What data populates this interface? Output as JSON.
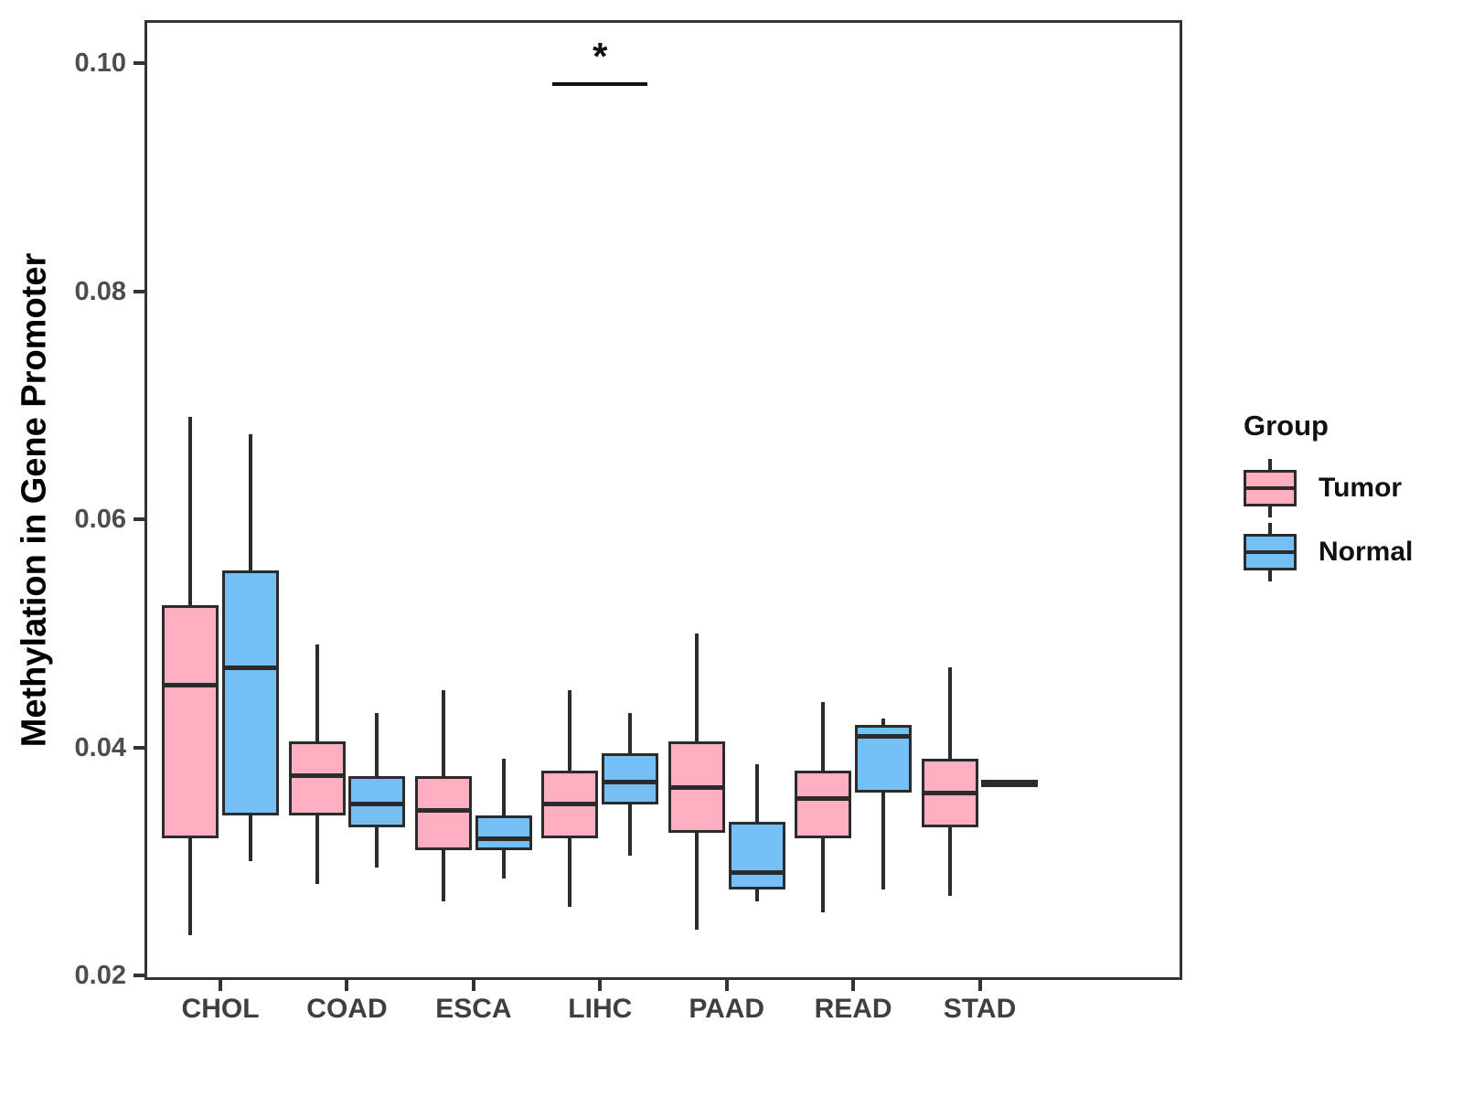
{
  "chart_data": {
    "type": "boxplot",
    "title": "",
    "xlabel": "",
    "ylabel": "Methylation in Gene Promoter",
    "categories": [
      "CHOL",
      "COAD",
      "ESCA",
      "LIHC",
      "PAAD",
      "READ",
      "STAD"
    ],
    "ytick_values": [
      0.02,
      0.04,
      0.06,
      0.08,
      0.1
    ],
    "ytick_labels": [
      "0.02",
      "0.04",
      "0.06",
      "0.08",
      "0.10"
    ],
    "ylim": [
      0.0196,
      0.1038
    ],
    "grid": "off",
    "legend_position": "right",
    "legend": {
      "title": "Group"
    },
    "colors": {
      "box_border": "#2B2B2B",
      "panel_border": "#333333",
      "axis_text": "#4D4D4D",
      "annotation": "#111111"
    },
    "series": [
      {
        "name": "Tumor",
        "color": "#FBAFC0",
        "boxes": [
          {
            "category": "CHOL",
            "low": 0.0235,
            "q1": 0.032,
            "median": 0.0455,
            "q3": 0.0525,
            "high": 0.069
          },
          {
            "category": "COAD",
            "low": 0.028,
            "q1": 0.034,
            "median": 0.0375,
            "q3": 0.0405,
            "high": 0.049
          },
          {
            "category": "ESCA",
            "low": 0.0265,
            "q1": 0.031,
            "median": 0.0345,
            "q3": 0.0375,
            "high": 0.045
          },
          {
            "category": "LIHC",
            "low": 0.026,
            "q1": 0.032,
            "median": 0.035,
            "q3": 0.038,
            "high": 0.045
          },
          {
            "category": "PAAD",
            "low": 0.024,
            "q1": 0.0325,
            "median": 0.0365,
            "q3": 0.0405,
            "high": 0.05
          },
          {
            "category": "READ",
            "low": 0.0255,
            "q1": 0.032,
            "median": 0.0355,
            "q3": 0.038,
            "high": 0.044
          },
          {
            "category": "STAD",
            "low": 0.027,
            "q1": 0.033,
            "median": 0.036,
            "q3": 0.039,
            "high": 0.047
          }
        ]
      },
      {
        "name": "Normal",
        "color": "#74BFF5",
        "boxes": [
          {
            "category": "CHOL",
            "low": 0.03,
            "q1": 0.034,
            "median": 0.047,
            "q3": 0.0555,
            "high": 0.0675
          },
          {
            "category": "COAD",
            "low": 0.0295,
            "q1": 0.033,
            "median": 0.035,
            "q3": 0.0375,
            "high": 0.043
          },
          {
            "category": "ESCA",
            "low": 0.0285,
            "q1": 0.031,
            "median": 0.032,
            "q3": 0.034,
            "high": 0.039
          },
          {
            "category": "LIHC",
            "low": 0.0305,
            "q1": 0.035,
            "median": 0.037,
            "q3": 0.0395,
            "high": 0.043
          },
          {
            "category": "PAAD",
            "low": 0.0265,
            "q1": 0.0275,
            "median": 0.029,
            "q3": 0.0335,
            "high": 0.0385
          },
          {
            "category": "READ",
            "low": 0.0275,
            "q1": 0.036,
            "median": 0.041,
            "q3": 0.042,
            "high": 0.0425
          },
          {
            "category": "STAD",
            "low": 0.037,
            "q1": 0.037,
            "median": 0.037,
            "q3": 0.037,
            "high": 0.037
          }
        ]
      }
    ],
    "significance": {
      "label": "*",
      "category": "LIHC",
      "bar_value": 0.0982
    }
  }
}
